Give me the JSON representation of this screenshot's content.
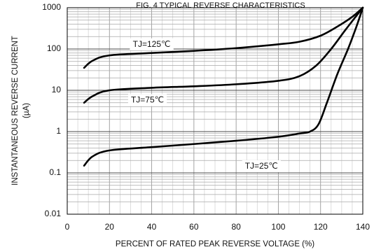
{
  "chart_data": {
    "type": "line",
    "title": "FIG. 4 TYPICAL REVERSE CHARACTERISTICS",
    "xlabel": "PERCENT OF RATED PEAK REVERSE VOLTAGE (%)",
    "ylabel_line1": "INSTANTANEOUS REVERSE CURRENT",
    "ylabel_line2": "(µA)",
    "x_scale": "linear",
    "y_scale": "log",
    "xlim": [
      0,
      140
    ],
    "ylim": [
      0.01,
      1000
    ],
    "x_ticks": [
      {
        "value": 0,
        "label": "0"
      },
      {
        "value": 20,
        "label": "20"
      },
      {
        "value": 40,
        "label": "40"
      },
      {
        "value": 60,
        "label": "60"
      },
      {
        "value": 80,
        "label": "80"
      },
      {
        "value": 100,
        "label": "100"
      },
      {
        "value": 120,
        "label": "120"
      },
      {
        "value": 140,
        "label": "140"
      }
    ],
    "y_ticks": [
      {
        "value": 0.01,
        "label": "0.01"
      },
      {
        "value": 0.1,
        "label": "0.1"
      },
      {
        "value": 1,
        "label": "1"
      },
      {
        "value": 10,
        "label": "10"
      },
      {
        "value": 100,
        "label": "100"
      },
      {
        "value": 1000,
        "label": "1000"
      }
    ],
    "grid": true,
    "series": [
      {
        "name": "TJ=125℃",
        "label_at": {
          "x": 40,
          "y": 130
        },
        "points": [
          [
            8,
            35
          ],
          [
            12,
            52
          ],
          [
            20,
            70
          ],
          [
            40,
            80
          ],
          [
            60,
            90
          ],
          [
            80,
            105
          ],
          [
            100,
            130
          ],
          [
            110,
            150
          ],
          [
            120,
            210
          ],
          [
            128,
            350
          ],
          [
            135,
            600
          ],
          [
            140,
            1000
          ]
        ]
      },
      {
        "name": "TJ=75℃",
        "label_at": {
          "x": 38,
          "y": 5.8
        },
        "points": [
          [
            8,
            5
          ],
          [
            12,
            7.2
          ],
          [
            20,
            10
          ],
          [
            40,
            11.5
          ],
          [
            60,
            12.5
          ],
          [
            80,
            14
          ],
          [
            100,
            17
          ],
          [
            110,
            22
          ],
          [
            118,
            40
          ],
          [
            125,
            100
          ],
          [
            132,
            300
          ],
          [
            140,
            1000
          ]
        ]
      },
      {
        "name": "TJ=25℃",
        "label_at": {
          "x": 92,
          "y": 0.145
        },
        "points": [
          [
            8,
            0.15
          ],
          [
            12,
            0.25
          ],
          [
            20,
            0.35
          ],
          [
            40,
            0.42
          ],
          [
            60,
            0.5
          ],
          [
            80,
            0.6
          ],
          [
            100,
            0.75
          ],
          [
            110,
            0.9
          ],
          [
            115,
            1.0
          ],
          [
            119,
            1.5
          ],
          [
            123,
            5
          ],
          [
            128,
            25
          ],
          [
            133,
            100
          ],
          [
            137,
            350
          ],
          [
            140,
            1000
          ]
        ]
      }
    ]
  }
}
